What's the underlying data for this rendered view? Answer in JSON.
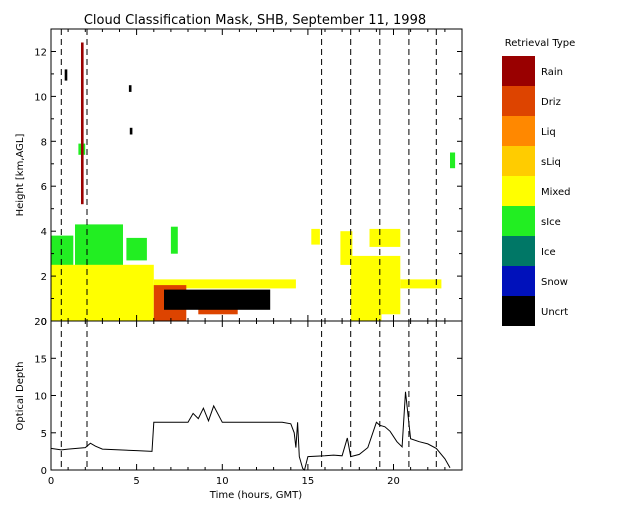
{
  "title": "Cloud Classification Mask, SHB, September 11, 1998",
  "chart_data": [
    {
      "type": "heatmap",
      "panel": "cloud-mask",
      "ylabel": "Height [km,AGL]",
      "xlim": [
        0,
        24.0
      ],
      "ylim": [
        0,
        13.0
      ],
      "yticks": [
        0,
        2,
        4,
        6,
        8,
        10,
        12
      ],
      "dashed_lines_at_hours": [
        0.6,
        2.1,
        15.8,
        17.5,
        19.2,
        20.9,
        22.5
      ],
      "legend": {
        "title": "Retrieval Type",
        "placement": "right",
        "entries": [
          {
            "label": "Rain",
            "color": "#990000"
          },
          {
            "label": "Driz",
            "color": "#dd4400"
          },
          {
            "label": "Liq",
            "color": "#ff8800"
          },
          {
            "label": "sLiq",
            "color": "#ffcc00"
          },
          {
            "label": "Mixed",
            "color": "#ffff00"
          },
          {
            "label": "sIce",
            "color": "#22ee22"
          },
          {
            "label": "Ice",
            "color": "#007766"
          },
          {
            "label": "Snow",
            "color": "#0011bb"
          },
          {
            "label": "Uncrt",
            "color": "#000000"
          }
        ]
      },
      "regions": [
        {
          "cls": "sIce",
          "x0": 0.0,
          "x1": 1.3,
          "y0": 2.4,
          "y1": 3.8
        },
        {
          "cls": "sIce",
          "x0": 1.4,
          "x1": 4.2,
          "y0": 2.4,
          "y1": 4.3
        },
        {
          "cls": "sIce",
          "x0": 4.4,
          "x1": 5.6,
          "y0": 2.7,
          "y1": 3.7
        },
        {
          "cls": "sIce",
          "x0": 7.0,
          "x1": 7.4,
          "y0": 3.0,
          "y1": 4.2
        },
        {
          "cls": "sIce",
          "x0": 1.6,
          "x1": 2.0,
          "y0": 7.4,
          "y1": 7.9
        },
        {
          "cls": "sIce",
          "x0": 23.3,
          "x1": 23.6,
          "y0": 6.8,
          "y1": 7.5
        },
        {
          "cls": "Mixed",
          "x0": 0.0,
          "x1": 6.0,
          "y0": 0.0,
          "y1": 2.5
        },
        {
          "cls": "Mixed",
          "x0": 6.0,
          "x1": 14.3,
          "y0": 1.45,
          "y1": 1.85
        },
        {
          "cls": "Mixed",
          "x0": 15.2,
          "x1": 15.7,
          "y0": 3.4,
          "y1": 4.1
        },
        {
          "cls": "Mixed",
          "x0": 16.9,
          "x1": 17.6,
          "y0": 2.5,
          "y1": 4.0
        },
        {
          "cls": "Mixed",
          "x0": 18.6,
          "x1": 20.4,
          "y0": 3.3,
          "y1": 4.1
        },
        {
          "cls": "Mixed",
          "x0": 17.5,
          "x1": 19.3,
          "y0": 0.0,
          "y1": 2.9
        },
        {
          "cls": "Mixed",
          "x0": 19.3,
          "x1": 20.4,
          "y0": 0.3,
          "y1": 2.9
        },
        {
          "cls": "Mixed",
          "x0": 20.4,
          "x1": 22.8,
          "y0": 1.45,
          "y1": 1.85
        },
        {
          "cls": "Driz",
          "x0": 6.0,
          "x1": 7.9,
          "y0": 0.0,
          "y1": 1.6
        },
        {
          "cls": "Driz",
          "x0": 8.6,
          "x1": 10.9,
          "y0": 0.3,
          "y1": 1.3
        },
        {
          "cls": "Uncrt",
          "x0": 6.6,
          "x1": 12.8,
          "y0": 0.5,
          "y1": 1.4
        },
        {
          "cls": "Uncrt",
          "x0": 0.8,
          "x1": 0.95,
          "y0": 10.7,
          "y1": 11.2
        },
        {
          "cls": "Rain",
          "x0": 1.75,
          "x1": 1.9,
          "y0": 5.2,
          "y1": 12.4
        },
        {
          "cls": "Uncrt",
          "x0": 4.55,
          "x1": 4.7,
          "y0": 10.2,
          "y1": 10.5
        },
        {
          "cls": "Uncrt",
          "x0": 4.6,
          "x1": 4.75,
          "y0": 8.3,
          "y1": 8.6
        }
      ]
    },
    {
      "type": "line",
      "panel": "optical-depth",
      "xlabel": "Time (hours, GMT)",
      "ylabel": "Optical Depth",
      "xlim": [
        0,
        24.0
      ],
      "ylim": [
        0,
        20
      ],
      "xticks": [
        0,
        5,
        10,
        15,
        20
      ],
      "yticks": [
        0,
        5,
        10,
        15,
        20
      ],
      "series": [
        {
          "x": [
            0.0,
            0.3,
            0.6,
            1.0,
            1.5,
            2.0,
            2.3,
            2.6,
            3.0,
            4.0,
            5.0,
            5.9,
            6.0,
            8.0,
            8.3,
            8.6,
            8.9,
            9.2,
            9.5,
            10.0,
            11.0,
            12.0,
            13.0,
            13.5,
            14.0,
            14.2,
            14.3,
            14.4,
            14.5,
            14.7,
            14.8,
            15.0,
            16.0,
            16.5,
            17.0,
            17.3,
            17.5,
            18.0,
            18.5,
            19.0,
            19.2,
            19.5,
            19.8,
            20.2,
            20.5,
            20.7,
            21.0,
            21.5,
            22.0,
            22.5,
            23.0,
            23.3
          ],
          "y": [
            2.9,
            2.8,
            2.7,
            2.8,
            2.9,
            3.0,
            3.6,
            3.2,
            2.8,
            2.7,
            2.6,
            2.5,
            6.4,
            6.4,
            7.6,
            6.9,
            8.3,
            6.6,
            8.6,
            6.4,
            6.4,
            6.4,
            6.4,
            6.4,
            6.2,
            5.0,
            3.0,
            6.4,
            1.8,
            0.2,
            0.0,
            1.8,
            1.9,
            2.0,
            1.9,
            4.3,
            1.8,
            2.1,
            3.0,
            6.4,
            6.0,
            5.8,
            5.2,
            3.8,
            3.1,
            10.5,
            4.2,
            3.8,
            3.5,
            2.9,
            1.5,
            0.3
          ]
        }
      ]
    }
  ]
}
